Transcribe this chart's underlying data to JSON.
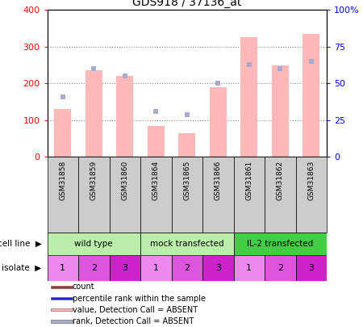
{
  "title": "GDS918 / 37136_at",
  "samples": [
    "GSM31858",
    "GSM31859",
    "GSM31860",
    "GSM31864",
    "GSM31865",
    "GSM31866",
    "GSM31861",
    "GSM31862",
    "GSM31863"
  ],
  "bar_values": [
    130,
    235,
    220,
    85,
    65,
    190,
    325,
    248,
    335
  ],
  "rank_values": [
    41,
    60,
    55,
    31,
    29,
    50,
    63,
    60,
    65
  ],
  "bar_color": "#ffb8b8",
  "rank_color": "#aaaacc",
  "ylim_left": [
    0,
    400
  ],
  "ylim_right": [
    0,
    100
  ],
  "yticks_left": [
    0,
    100,
    200,
    300,
    400
  ],
  "yticks_right": [
    0,
    25,
    50,
    75,
    100
  ],
  "yticklabels_right": [
    "0",
    "25",
    "50",
    "75",
    "100%"
  ],
  "cell_line_groups": [
    {
      "label": "wild type",
      "start": 0,
      "end": 3,
      "color": "#bbeeaa"
    },
    {
      "label": "mock transfected",
      "start": 3,
      "end": 6,
      "color": "#bbeeaa"
    },
    {
      "label": "IL-2 transfected",
      "start": 6,
      "end": 9,
      "color": "#44cc44"
    }
  ],
  "isolate_colors": [
    "#ee88ee",
    "#dd55dd",
    "#cc22cc"
  ],
  "isolate_labels": [
    "1",
    "2",
    "3",
    "1",
    "2",
    "3",
    "1",
    "2",
    "3"
  ],
  "sample_box_color": "#cccccc",
  "legend_colors": [
    "#cc2222",
    "#2222cc",
    "#ffb8b8",
    "#aaaacc"
  ],
  "legend_labels": [
    "count",
    "percentile rank within the sample",
    "value, Detection Call = ABSENT",
    "rank, Detection Call = ABSENT"
  ]
}
